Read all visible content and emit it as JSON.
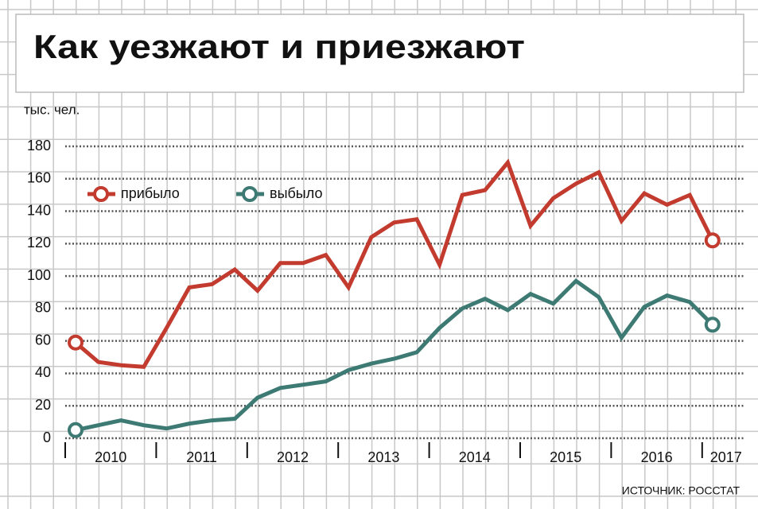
{
  "chart_data": {
    "type": "line",
    "title": "Как уезжают и приезжают",
    "unit_label": "тыс. чел.",
    "source": "ИСТОЧНИК: РОССТАТ",
    "years": [
      "2010",
      "2011",
      "2012",
      "2013",
      "2014",
      "2015",
      "2016",
      "2017"
    ],
    "ylim": [
      0,
      180
    ],
    "yticks": [
      0,
      20,
      40,
      60,
      80,
      100,
      120,
      140,
      160,
      180
    ],
    "grid": true,
    "series": [
      {
        "name": "прибыло",
        "color": "#c23b2e",
        "values": [
          59,
          47,
          45,
          44,
          68,
          93,
          95,
          104,
          91,
          108,
          108,
          113,
          93,
          124,
          133,
          135,
          107,
          150,
          153,
          170,
          131,
          148,
          157,
          164,
          134,
          151,
          144,
          150,
          122
        ]
      },
      {
        "name": "выбыло",
        "color": "#3d7a73",
        "values": [
          5,
          8,
          11,
          8,
          6,
          9,
          11,
          12,
          25,
          31,
          33,
          35,
          42,
          46,
          49,
          53,
          68,
          80,
          86,
          79,
          89,
          83,
          97,
          87,
          62,
          81,
          88,
          84,
          70
        ]
      }
    ]
  }
}
